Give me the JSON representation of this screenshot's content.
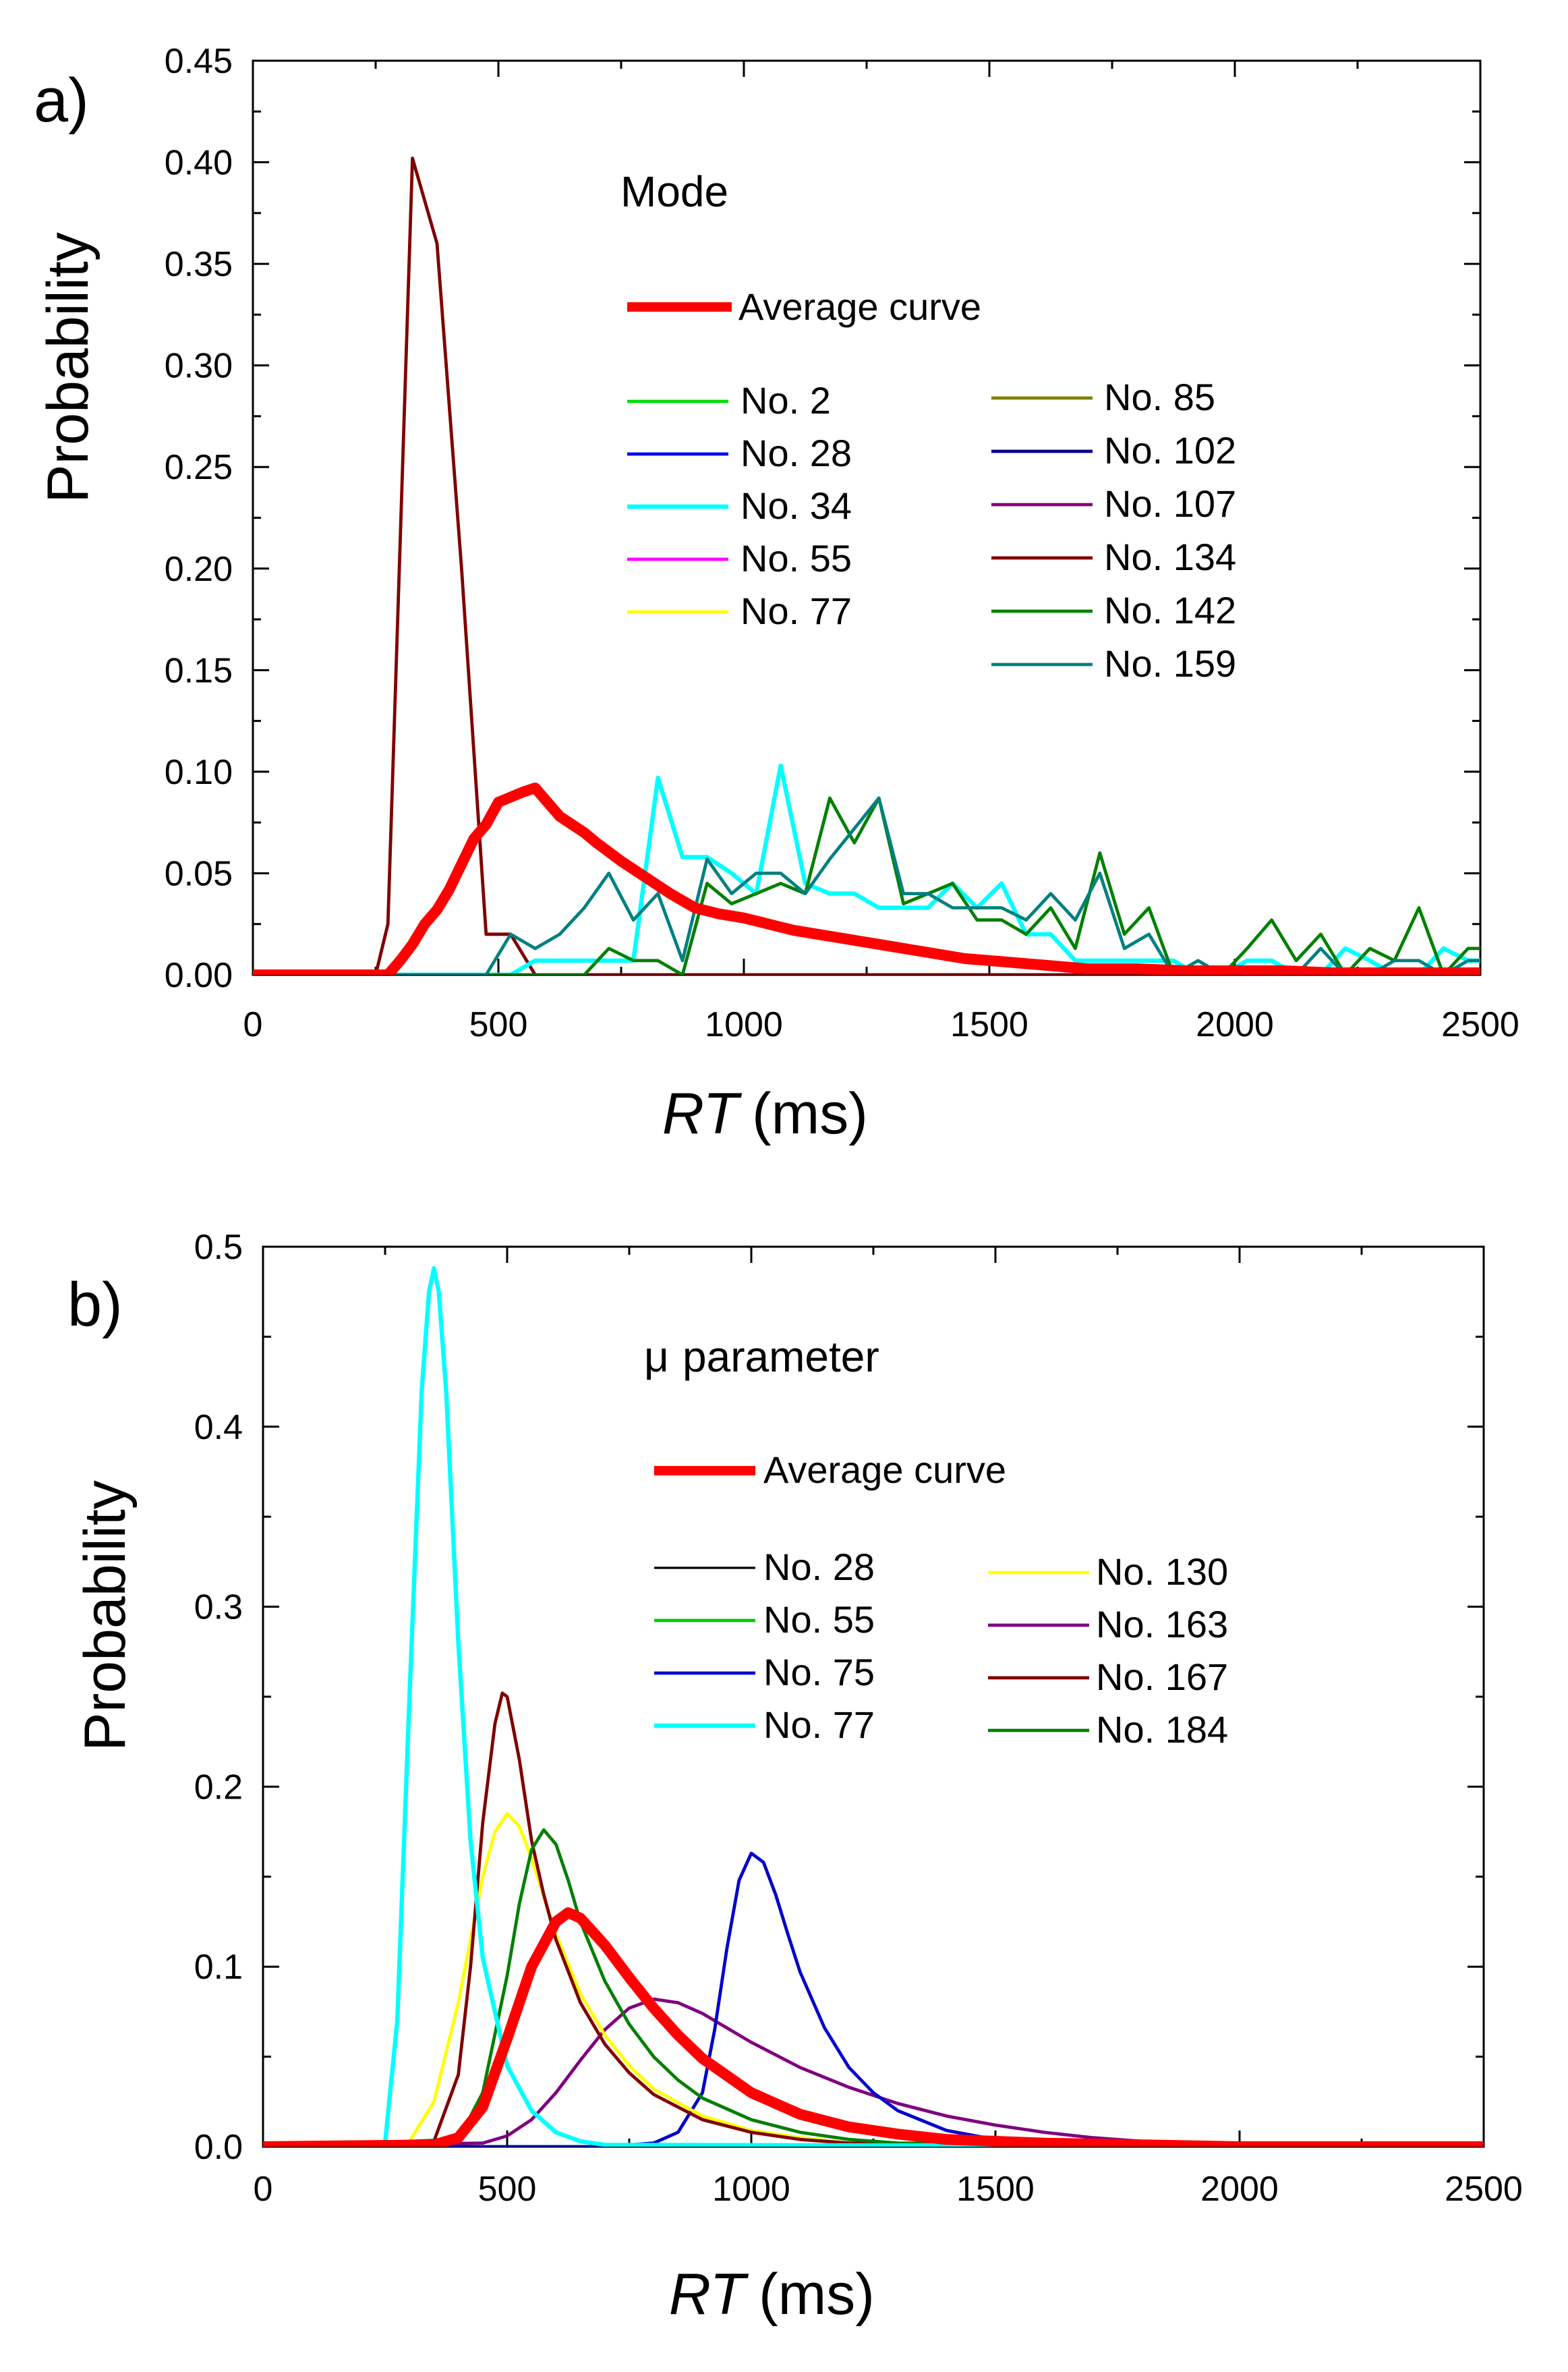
{
  "chart_data": [
    {
      "panel_label": "a)",
      "type": "line",
      "title": "Mode",
      "xlabel_italic": "RT",
      "xlabel_unit": "(ms)",
      "ylabel": "Probability",
      "xlim": [
        0,
        2500
      ],
      "ylim": [
        0,
        0.45
      ],
      "xticks": [
        0,
        500,
        1000,
        1500,
        2000,
        2500
      ],
      "yticks": [
        0.0,
        0.05,
        0.1,
        0.15,
        0.2,
        0.25,
        0.3,
        0.35,
        0.4,
        0.45
      ],
      "ytick_labels": [
        "0.00",
        "0.05",
        "0.10",
        "0.15",
        "0.20",
        "0.25",
        "0.30",
        "0.35",
        "0.40",
        "0.45"
      ],
      "xtick_labels": [
        "0",
        "500",
        "1000",
        "1500",
        "2000",
        "2500"
      ],
      "average_legend": "Average curve",
      "legend_col1": [
        "No. 2",
        "No. 28",
        "No. 34",
        "No. 55",
        "No. 77"
      ],
      "legend_col2": [
        "No. 85",
        "No. 102",
        "No. 107",
        "No. 134",
        "No. 142",
        "No. 159"
      ],
      "series": [
        {
          "name": "No. 2",
          "color": "#00dd00",
          "width": 3,
          "x": [
            0,
            2500
          ],
          "y": [
            0,
            0
          ]
        },
        {
          "name": "No. 28",
          "color": "#0000ff",
          "width": 3,
          "x": [
            0,
            2500
          ],
          "y": [
            0,
            0
          ]
        },
        {
          "name": "No. 55",
          "color": "#ff00ff",
          "width": 3,
          "x": [
            0,
            2500
          ],
          "y": [
            0,
            0
          ]
        },
        {
          "name": "No. 77",
          "color": "#ffff00",
          "width": 3,
          "x": [
            0,
            2500
          ],
          "y": [
            0,
            0
          ]
        },
        {
          "name": "No. 85",
          "color": "#808000",
          "width": 3,
          "x": [
            0,
            2500
          ],
          "y": [
            0,
            0
          ]
        },
        {
          "name": "No. 102",
          "color": "#000080",
          "width": 3,
          "x": [
            0,
            2500
          ],
          "y": [
            0,
            0
          ]
        },
        {
          "name": "No. 107",
          "color": "#800080",
          "width": 3,
          "x": [
            0,
            2500
          ],
          "y": [
            0,
            0
          ]
        },
        {
          "name": "No. 134",
          "color": "#800000",
          "width": 3,
          "x": [
            0,
            250,
            275,
            325,
            375,
            425,
            475,
            525,
            575,
            625,
            2500
          ],
          "y": [
            0,
            0,
            0.025,
            0.402,
            0.36,
            0.2,
            0.02,
            0.02,
            0,
            0,
            0
          ]
        },
        {
          "name": "No. 34",
          "color": "#00ffff",
          "width": 4,
          "x": [
            0,
            475,
            525,
            575,
            625,
            675,
            725,
            775,
            825,
            875,
            925,
            975,
            1025,
            1075,
            1125,
            1175,
            1225,
            1275,
            1325,
            1375,
            1425,
            1475,
            1525,
            1575,
            1625,
            1675,
            1725,
            1775,
            1825,
            1875,
            1925,
            1975,
            2025,
            2075,
            2125,
            2175,
            2225,
            2275,
            2325,
            2375,
            2425,
            2475,
            2500
          ],
          "y": [
            0,
            0,
            0,
            0.007,
            0.007,
            0.007,
            0.007,
            0.007,
            0.097,
            0.058,
            0.058,
            0.05,
            0.04,
            0.103,
            0.045,
            0.04,
            0.04,
            0.033,
            0.033,
            0.033,
            0.045,
            0.033,
            0.045,
            0.02,
            0.02,
            0.007,
            0.007,
            0.007,
            0.007,
            0.007,
            0,
            0,
            0.007,
            0.007,
            0,
            0,
            0.013,
            0.007,
            0,
            0,
            0.013,
            0.007,
            0.007
          ]
        },
        {
          "name": "No. 142",
          "color": "#008000",
          "width": 3,
          "x": [
            0,
            675,
            725,
            775,
            825,
            875,
            925,
            975,
            1025,
            1075,
            1125,
            1175,
            1225,
            1275,
            1325,
            1375,
            1425,
            1475,
            1525,
            1575,
            1625,
            1675,
            1725,
            1775,
            1825,
            1875,
            1925,
            1975,
            2025,
            2075,
            2125,
            2175,
            2225,
            2275,
            2325,
            2375,
            2425,
            2475,
            2500
          ],
          "y": [
            0,
            0,
            0.013,
            0.007,
            0.007,
            0,
            0.045,
            0.035,
            0.04,
            0.045,
            0.04,
            0.087,
            0.065,
            0.087,
            0.035,
            0.04,
            0.045,
            0.027,
            0.027,
            0.02,
            0.033,
            0.013,
            0.06,
            0.02,
            0.033,
            0,
            0,
            0,
            0.013,
            0.027,
            0.007,
            0.02,
            0,
            0.013,
            0.007,
            0.033,
            0,
            0.013,
            0.013
          ]
        },
        {
          "name": "No. 159",
          "color": "#008080",
          "width": 3,
          "x": [
            0,
            475,
            525,
            575,
            625,
            675,
            725,
            775,
            825,
            875,
            925,
            975,
            1025,
            1075,
            1125,
            1175,
            1225,
            1275,
            1325,
            1375,
            1425,
            1475,
            1525,
            1575,
            1625,
            1675,
            1725,
            1775,
            1825,
            1875,
            1925,
            1975,
            2025,
            2075,
            2125,
            2175,
            2225,
            2275,
            2325,
            2375,
            2425,
            2475,
            2500
          ],
          "y": [
            0,
            0,
            0.02,
            0.013,
            0.02,
            0.033,
            0.05,
            0.027,
            0.04,
            0.007,
            0.057,
            0.04,
            0.05,
            0.05,
            0.04,
            0.057,
            0.072,
            0.087,
            0.04,
            0.04,
            0.033,
            0.033,
            0.033,
            0.027,
            0.04,
            0.027,
            0.05,
            0.013,
            0.02,
            0,
            0.007,
            0,
            0,
            0,
            0,
            0.013,
            0,
            0,
            0.007,
            0.007,
            0,
            0.007,
            0.007
          ]
        },
        {
          "name": "Average curve",
          "color": "#ff0000",
          "width": 10,
          "x": [
            0,
            200,
            250,
            275,
            300,
            325,
            350,
            375,
            400,
            450,
            475,
            500,
            550,
            575,
            600,
            625,
            650,
            675,
            700,
            750,
            800,
            850,
            900,
            950,
            1000,
            1050,
            1100,
            1150,
            1200,
            1250,
            1300,
            1350,
            1400,
            1450,
            1500,
            1550,
            1600,
            1650,
            1700,
            1800,
            1900,
            2000,
            2100,
            2200,
            2300,
            2400,
            2500
          ],
          "y": [
            0,
            0,
            0,
            0,
            0.007,
            0.015,
            0.025,
            0.032,
            0.042,
            0.067,
            0.074,
            0.085,
            0.09,
            0.092,
            0.085,
            0.078,
            0.074,
            0.07,
            0.065,
            0.056,
            0.048,
            0.04,
            0.033,
            0.03,
            0.028,
            0.025,
            0.022,
            0.02,
            0.018,
            0.016,
            0.014,
            0.012,
            0.01,
            0.008,
            0.007,
            0.006,
            0.005,
            0.004,
            0.003,
            0.003,
            0.002,
            0.002,
            0.002,
            0.001,
            0.001,
            0.001,
            0.001
          ]
        }
      ]
    },
    {
      "panel_label": "b)",
      "type": "line",
      "title_symbol": "μ",
      "title": "parameter",
      "xlabel_italic": "RT",
      "xlabel_unit": "(ms)",
      "ylabel": "Probability",
      "xlim": [
        0,
        2500
      ],
      "ylim": [
        0,
        0.5
      ],
      "xticks": [
        0,
        500,
        1000,
        1500,
        2000,
        2500
      ],
      "yticks": [
        0.0,
        0.1,
        0.2,
        0.3,
        0.4,
        0.5
      ],
      "ytick_labels": [
        "0.0",
        "0.1",
        "0.2",
        "0.3",
        "0.4",
        "0.5"
      ],
      "xtick_labels": [
        "0",
        "500",
        "1000",
        "1500",
        "2000",
        "2500"
      ],
      "average_legend": "Average curve",
      "legend_col1": [
        "No. 28",
        "No. 55",
        "No. 75",
        "No. 77"
      ],
      "legend_col2": [
        "No. 130",
        "No. 163",
        "No. 167",
        "No. 184"
      ],
      "series": [
        {
          "name": "No. 28",
          "color": "#000000",
          "width": 2,
          "x": [
            0,
            2500
          ],
          "y": [
            0,
            0
          ]
        },
        {
          "name": "No. 55",
          "color": "#00cc00",
          "width": 3,
          "x": [
            0,
            2500
          ],
          "y": [
            0,
            0
          ]
        },
        {
          "name": "No. 163",
          "color": "#800080",
          "width": 3,
          "x": [
            0,
            450,
            500,
            550,
            600,
            650,
            700,
            750,
            800,
            850,
            900,
            950,
            1000,
            1100,
            1200,
            1300,
            1400,
            1500,
            1600,
            1700,
            1800,
            1900,
            2000,
            2500
          ],
          "y": [
            0,
            0.002,
            0.006,
            0.015,
            0.03,
            0.048,
            0.065,
            0.077,
            0.082,
            0.08,
            0.074,
            0.066,
            0.058,
            0.044,
            0.033,
            0.024,
            0.017,
            0.012,
            0.008,
            0.005,
            0.003,
            0.002,
            0.001,
            0
          ]
        },
        {
          "name": "No. 75",
          "color": "#0000cc",
          "width": 3,
          "x": [
            0,
            700,
            800,
            850,
            900,
            925,
            950,
            975,
            1000,
            1025,
            1050,
            1075,
            1100,
            1150,
            1200,
            1250,
            1300,
            1400,
            1500,
            1600,
            1700,
            2500
          ],
          "y": [
            0,
            0,
            0.002,
            0.008,
            0.03,
            0.065,
            0.11,
            0.148,
            0.163,
            0.158,
            0.14,
            0.118,
            0.097,
            0.066,
            0.044,
            0.03,
            0.02,
            0.009,
            0.004,
            0.002,
            0.001,
            0
          ]
        },
        {
          "name": "No. 130",
          "color": "#ffff00",
          "width": 3,
          "x": [
            0,
            300,
            350,
            400,
            450,
            475,
            500,
            525,
            550,
            600,
            650,
            700,
            750,
            800,
            900,
            1000,
            1100,
            1200,
            1300,
            2500
          ],
          "y": [
            0,
            0.003,
            0.025,
            0.08,
            0.15,
            0.175,
            0.185,
            0.178,
            0.16,
            0.118,
            0.085,
            0.062,
            0.045,
            0.032,
            0.017,
            0.009,
            0.005,
            0.002,
            0.001,
            0
          ]
        },
        {
          "name": "No. 167",
          "color": "#800000",
          "width": 3,
          "x": [
            0,
            350,
            400,
            425,
            450,
            475,
            490,
            500,
            525,
            550,
            575,
            600,
            650,
            700,
            750,
            800,
            900,
            1000,
            1100,
            1200,
            2500
          ],
          "y": [
            0,
            0.003,
            0.04,
            0.1,
            0.18,
            0.235,
            0.252,
            0.25,
            0.215,
            0.17,
            0.14,
            0.115,
            0.08,
            0.057,
            0.041,
            0.029,
            0.015,
            0.008,
            0.004,
            0.002,
            0
          ]
        },
        {
          "name": "No. 184",
          "color": "#008000",
          "width": 3,
          "x": [
            0,
            400,
            450,
            500,
            525,
            550,
            575,
            600,
            625,
            650,
            700,
            750,
            800,
            850,
            900,
            1000,
            1100,
            1200,
            1300,
            2500
          ],
          "y": [
            0,
            0.004,
            0.03,
            0.095,
            0.135,
            0.165,
            0.176,
            0.168,
            0.148,
            0.125,
            0.092,
            0.068,
            0.05,
            0.037,
            0.027,
            0.015,
            0.008,
            0.004,
            0.002,
            0
          ]
        },
        {
          "name": "No. 77",
          "color": "#00ffff",
          "width": 4,
          "x": [
            0,
            250,
            275,
            300,
            325,
            340,
            350,
            360,
            375,
            400,
            425,
            450,
            500,
            550,
            600,
            650,
            700,
            2500
          ],
          "y": [
            0,
            0.002,
            0.07,
            0.25,
            0.42,
            0.475,
            0.488,
            0.475,
            0.42,
            0.28,
            0.17,
            0.105,
            0.045,
            0.02,
            0.008,
            0.003,
            0.001,
            0
          ]
        },
        {
          "name": "Average curve",
          "color": "#ff0000",
          "width": 10,
          "x": [
            0,
            350,
            400,
            450,
            500,
            550,
            600,
            625,
            650,
            700,
            750,
            800,
            850,
            900,
            1000,
            1100,
            1200,
            1300,
            1400,
            1500,
            1600,
            1800,
            2000,
            2500
          ],
          "y": [
            0,
            0.001,
            0.005,
            0.022,
            0.06,
            0.1,
            0.125,
            0.13,
            0.127,
            0.112,
            0.094,
            0.077,
            0.062,
            0.049,
            0.03,
            0.018,
            0.011,
            0.007,
            0.004,
            0.003,
            0.002,
            0.001,
            0,
            0
          ]
        }
      ]
    }
  ]
}
